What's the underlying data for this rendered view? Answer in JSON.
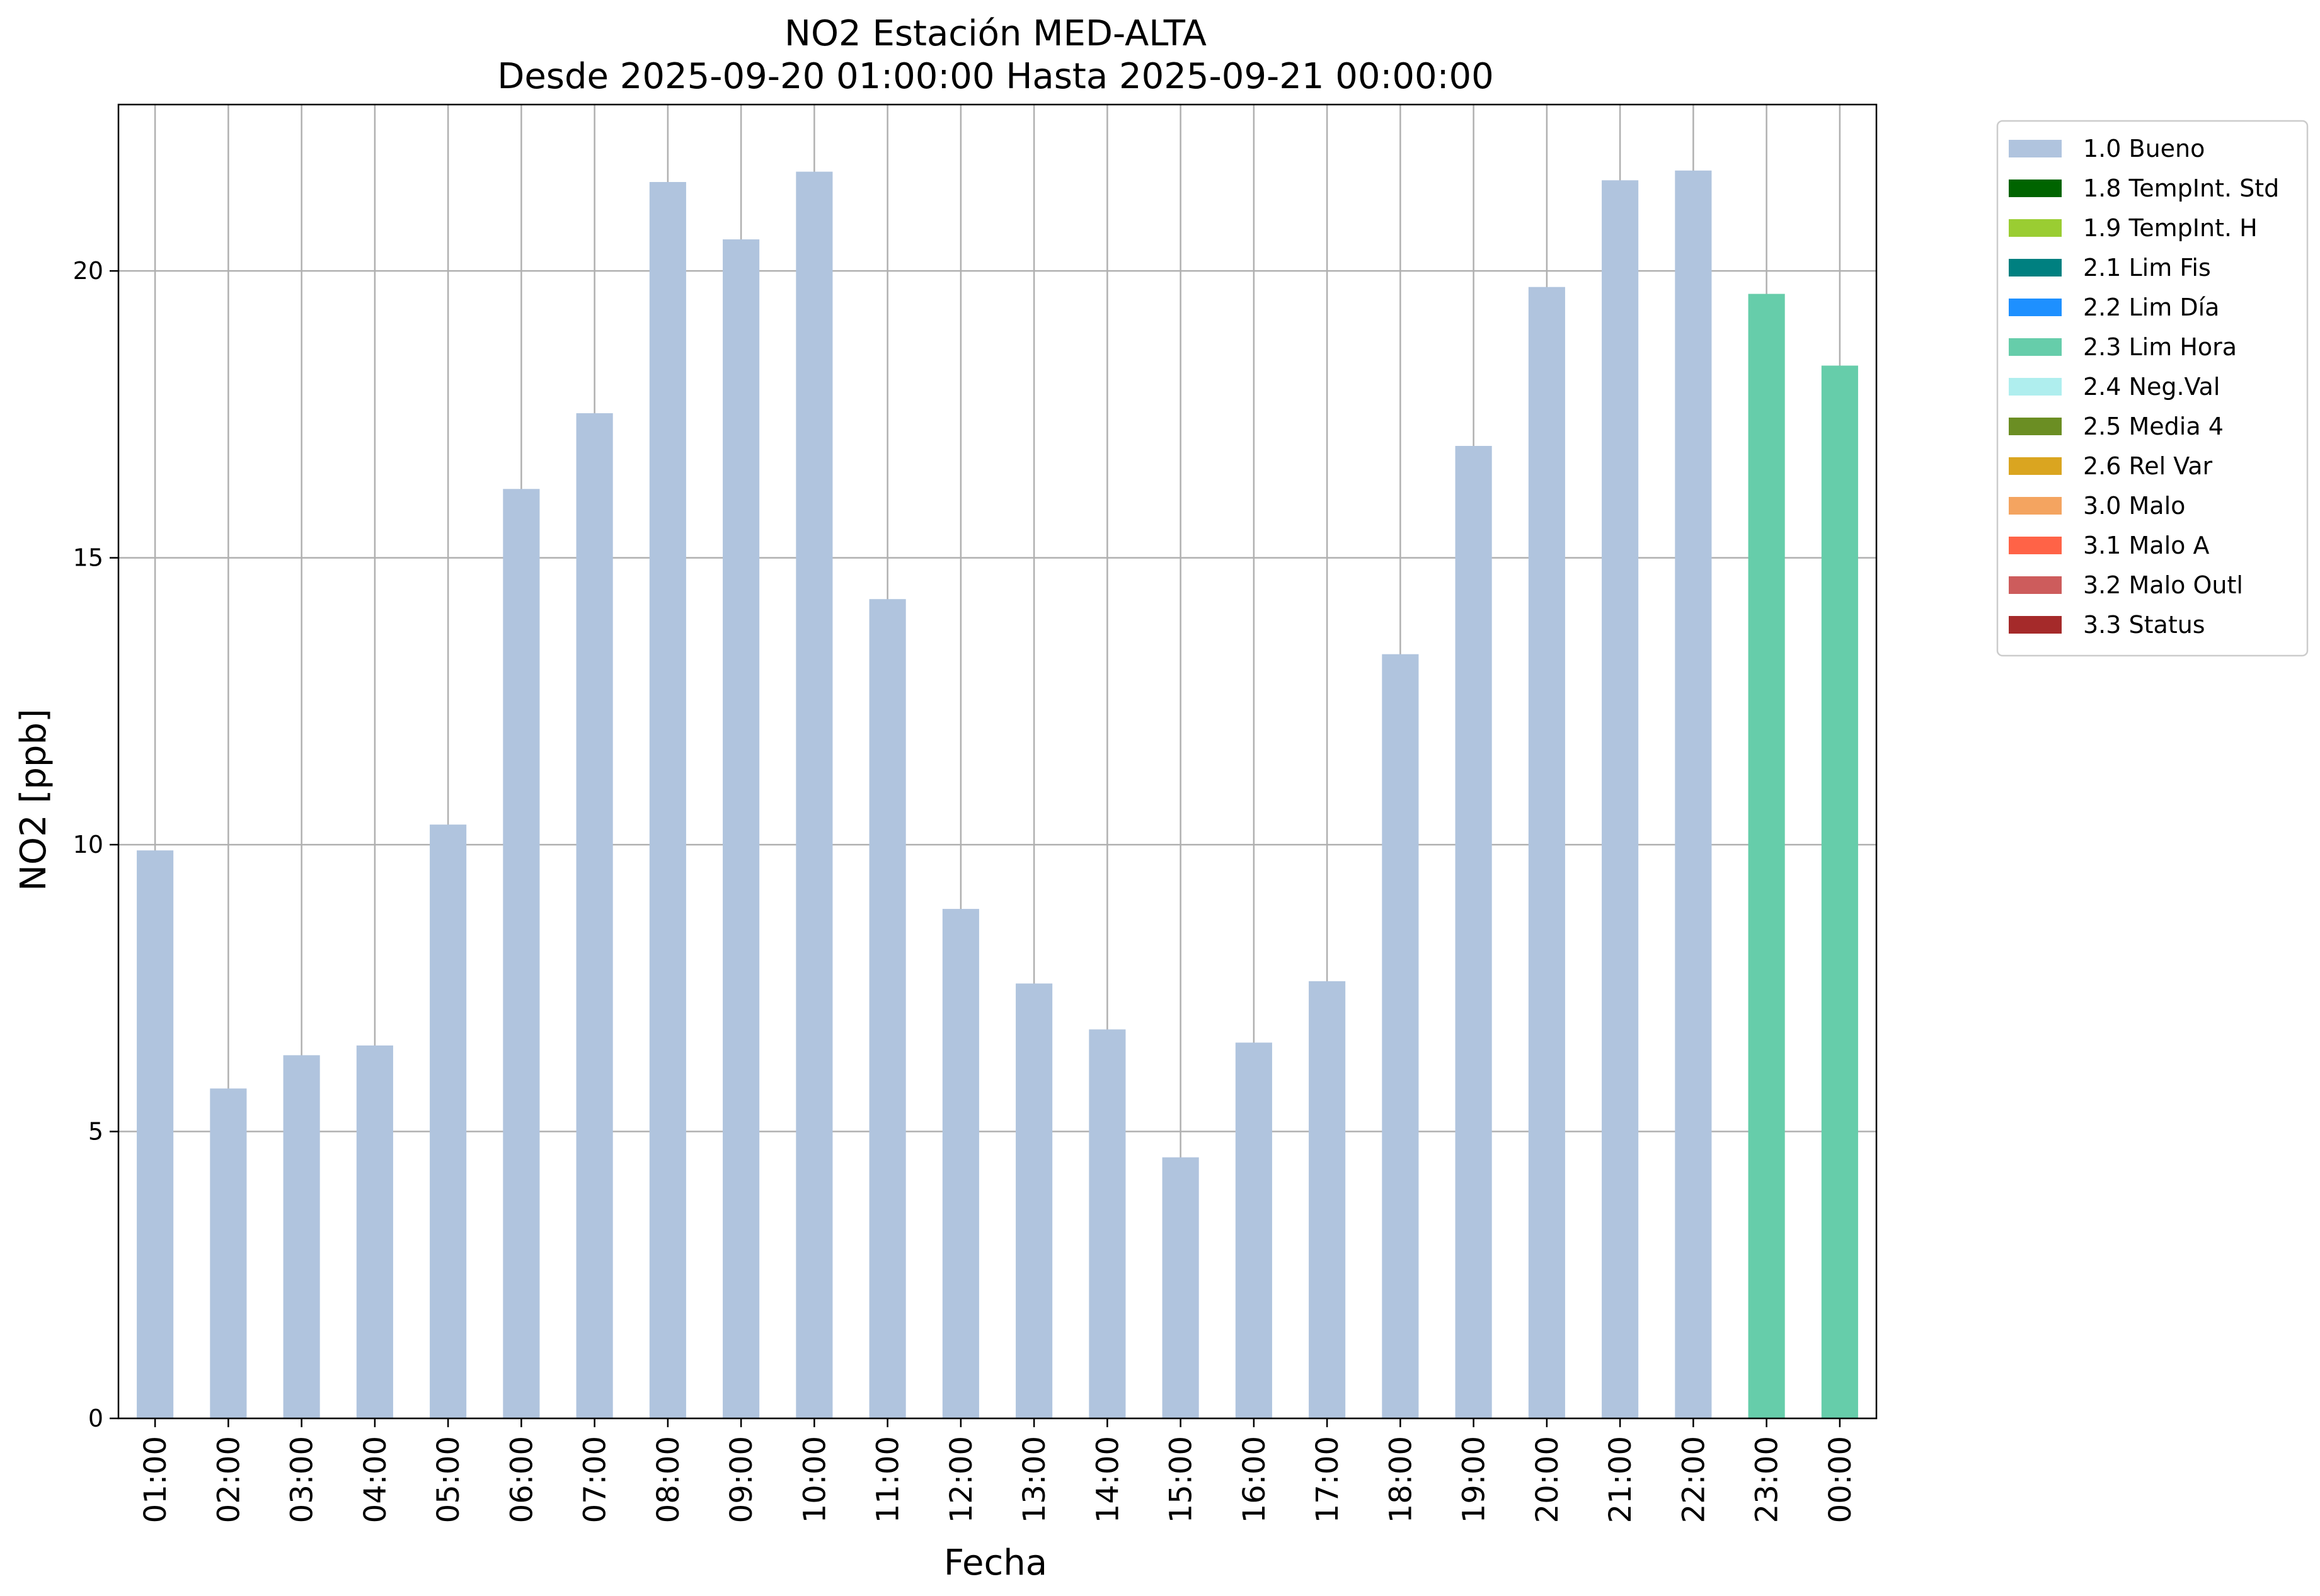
{
  "chart_data": {
    "type": "bar",
    "title": "NO2 Estación MED-ALTA",
    "subtitle": "Desde 2025-09-20 01:00:00 Hasta 2025-09-21 00:00:00",
    "xlabel": "Fecha",
    "ylabel": "NO2 [ppb]",
    "ylim": [
      0,
      22.9
    ],
    "yticks": [
      0,
      5,
      10,
      15,
      20
    ],
    "grid": true,
    "legend_position": "outside-right-top",
    "categories": [
      "01:00",
      "02:00",
      "03:00",
      "04:00",
      "05:00",
      "06:00",
      "07:00",
      "08:00",
      "09:00",
      "10:00",
      "11:00",
      "12:00",
      "13:00",
      "14:00",
      "15:00",
      "16:00",
      "17:00",
      "18:00",
      "19:00",
      "20:00",
      "21:00",
      "22:00",
      "23:00",
      "00:00"
    ],
    "values": [
      9.9,
      5.75,
      6.33,
      6.5,
      10.35,
      16.2,
      17.52,
      21.55,
      20.55,
      21.73,
      14.28,
      8.88,
      7.58,
      6.78,
      4.55,
      6.55,
      7.62,
      13.32,
      16.95,
      19.72,
      21.58,
      21.75,
      19.6,
      18.35
    ],
    "flags": [
      "1.0 Bueno",
      "1.0 Bueno",
      "1.0 Bueno",
      "1.0 Bueno",
      "1.0 Bueno",
      "1.0 Bueno",
      "1.0 Bueno",
      "1.0 Bueno",
      "1.0 Bueno",
      "1.0 Bueno",
      "1.0 Bueno",
      "1.0 Bueno",
      "1.0 Bueno",
      "1.0 Bueno",
      "1.0 Bueno",
      "1.0 Bueno",
      "1.0 Bueno",
      "1.0 Bueno",
      "1.0 Bueno",
      "1.0 Bueno",
      "1.0 Bueno",
      "1.0 Bueno",
      "2.3 Lim Hora",
      "2.3 Lim Hora"
    ],
    "legend": [
      {
        "label": "1.0 Bueno",
        "color": "#b0c4de"
      },
      {
        "label": "1.8 TempInt. Std",
        "color": "#006400"
      },
      {
        "label": "1.9 TempInt. H",
        "color": "#9acd32"
      },
      {
        "label": "2.1 Lim Fis",
        "color": "#008080"
      },
      {
        "label": "2.2 Lim Día",
        "color": "#1e90ff"
      },
      {
        "label": "2.3 Lim Hora",
        "color": "#66cdaa"
      },
      {
        "label": "2.4 Neg.Val",
        "color": "#afeeee"
      },
      {
        "label": "2.5 Media 4",
        "color": "#6b8e23"
      },
      {
        "label": "2.6 Rel Var",
        "color": "#daa520"
      },
      {
        "label": "3.0 Malo",
        "color": "#f4a460"
      },
      {
        "label": "3.1 Malo A",
        "color": "#ff6347"
      },
      {
        "label": "3.2 Malo Outl",
        "color": "#cd5c5c"
      },
      {
        "label": "3.3 Status",
        "color": "#a52a2a"
      }
    ]
  }
}
